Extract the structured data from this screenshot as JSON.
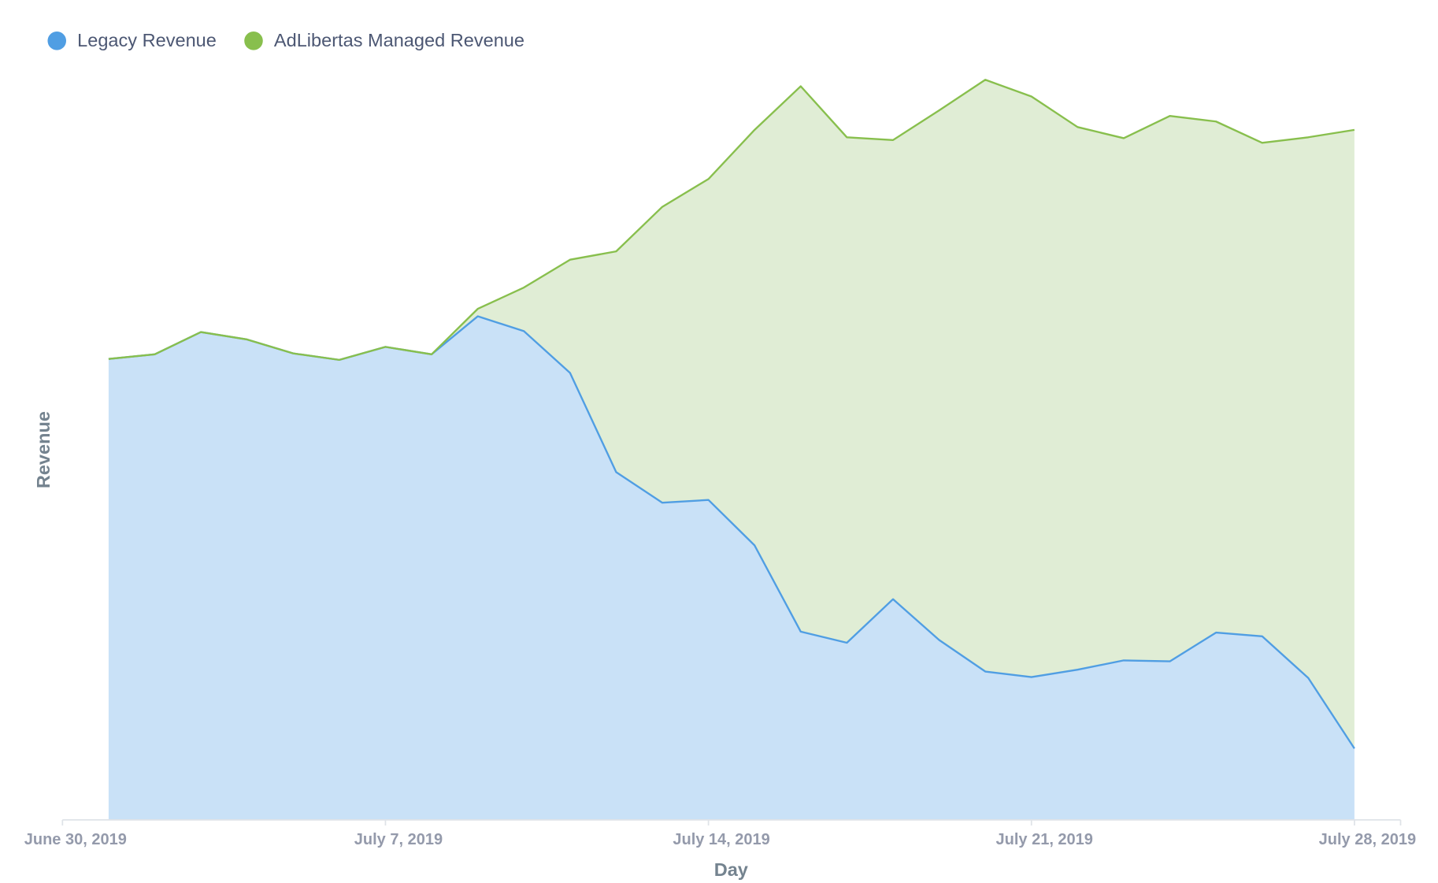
{
  "chart_data": {
    "type": "stacked-area",
    "x_label": "Day",
    "y_label": "Revenue",
    "x": [
      "2019-07-01",
      "2019-07-02",
      "2019-07-03",
      "2019-07-04",
      "2019-07-05",
      "2019-07-06",
      "2019-07-07",
      "2019-07-08",
      "2019-07-09",
      "2019-07-10",
      "2019-07-11",
      "2019-07-12",
      "2019-07-13",
      "2019-07-14",
      "2019-07-15",
      "2019-07-16",
      "2019-07-17",
      "2019-07-18",
      "2019-07-19",
      "2019-07-20",
      "2019-07-21",
      "2019-07-22",
      "2019-07-23",
      "2019-07-24",
      "2019-07-25",
      "2019-07-26",
      "2019-07-27",
      "2019-07-28"
    ],
    "series": [
      {
        "name": "Legacy Revenue",
        "color": "#509ee3",
        "fill": "#c9e1f7",
        "values": [
          497,
          502,
          526,
          518,
          503,
          496,
          510,
          502,
          543,
          527,
          482,
          375,
          342,
          345,
          296,
          203,
          191,
          238,
          194,
          160,
          154,
          162,
          172,
          171,
          202,
          198,
          153,
          77
        ]
      },
      {
        "name": "AdLibertas Managed Revenue",
        "color": "#88bf4d",
        "fill": "#e0edd5",
        "values": [
          0,
          0,
          0,
          0,
          0,
          0,
          0,
          0,
          8,
          47,
          122,
          238,
          319,
          346,
          448,
          588,
          545,
          495,
          571,
          638,
          626,
          585,
          563,
          588,
          551,
          532,
          583,
          667
        ]
      }
    ],
    "xlim": [
      "2019-06-30",
      "2019-07-29"
    ],
    "xticks": [
      {
        "value": "2019-06-30",
        "label": "June 30, 2019"
      },
      {
        "value": "2019-07-07",
        "label": "July 7, 2019"
      },
      {
        "value": "2019-07-14",
        "label": "July 14, 2019"
      },
      {
        "value": "2019-07-21",
        "label": "July 21, 2019"
      },
      {
        "value": "2019-07-28",
        "label": "July 28, 2019"
      }
    ],
    "ylim": [
      0,
      820
    ],
    "legend": "top-left"
  }
}
